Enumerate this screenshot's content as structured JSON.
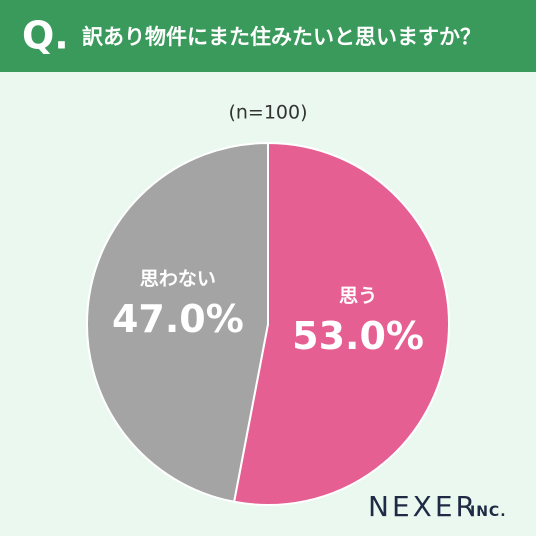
{
  "chart_data": {
    "type": "pie",
    "question_mark": "Q.",
    "title": "訳あり物件にまた住みたいと思いますか？",
    "subtitle": "(n=100)",
    "categories": [
      "思う",
      "思わない"
    ],
    "values": [
      53.0,
      47.0
    ],
    "value_labels": [
      "53.0%",
      "47.0%"
    ],
    "colors": [
      "#e65f92",
      "#a4a4a4"
    ],
    "brand": "NEXER",
    "brand_suffix": "INC."
  }
}
